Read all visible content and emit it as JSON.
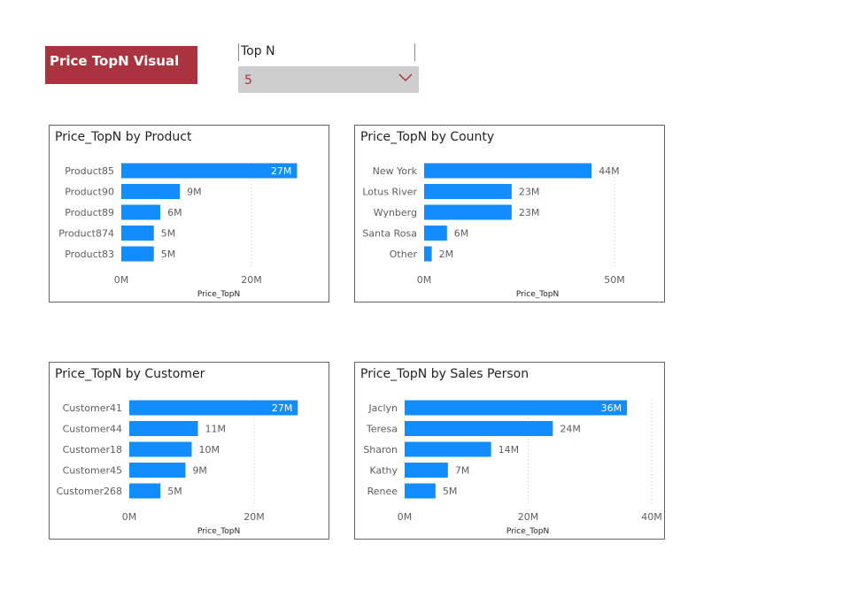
{
  "title": "Price TopN Visual",
  "slicer": {
    "label": "Top N",
    "value": "5"
  },
  "colors": {
    "bar": "#118dff",
    "title_bg": "#a9343f"
  },
  "chart_data": [
    {
      "type": "bar",
      "orientation": "horizontal",
      "title": "Price_TopN by Product",
      "xlabel": "Price_TopN",
      "categories": [
        "Product85",
        "Product90",
        "Product89",
        "Product874",
        "Product83"
      ],
      "values": [
        27,
        9,
        6,
        5,
        5
      ],
      "labels": [
        "27M",
        "9M",
        "6M",
        "5M",
        "5M"
      ],
      "ticks": [
        0,
        20
      ],
      "tick_labels": [
        "0M",
        "20M"
      ],
      "xlim": [
        0,
        30
      ]
    },
    {
      "type": "bar",
      "orientation": "horizontal",
      "title": "Price_TopN by County",
      "xlabel": "Price_TopN",
      "categories": [
        "New York",
        "Lotus River",
        "Wynberg",
        "Santa Rosa",
        "Other"
      ],
      "values": [
        44,
        23,
        23,
        6,
        2
      ],
      "labels": [
        "44M",
        "23M",
        "23M",
        "6M",
        "2M"
      ],
      "ticks": [
        0,
        50
      ],
      "tick_labels": [
        "0M",
        "50M"
      ],
      "xlim": [
        0,
        55
      ]
    },
    {
      "type": "bar",
      "orientation": "horizontal",
      "title": "Price_TopN by Customer",
      "xlabel": "Price_TopN",
      "categories": [
        "Customer41",
        "Customer44",
        "Customer18",
        "Customer45",
        "Customer268"
      ],
      "values": [
        27,
        11,
        10,
        9,
        5
      ],
      "labels": [
        "27M",
        "11M",
        "10M",
        "9M",
        "5M"
      ],
      "ticks": [
        0,
        20
      ],
      "tick_labels": [
        "0M",
        "20M"
      ],
      "xlim": [
        0,
        30
      ]
    },
    {
      "type": "bar",
      "orientation": "horizontal",
      "title": "Price_TopN by Sales Person",
      "xlabel": "Price_TopN",
      "categories": [
        "Jaclyn",
        "Teresa",
        "Sharon",
        "Kathy",
        "Renee"
      ],
      "values": [
        36,
        24,
        14,
        7,
        5
      ],
      "labels": [
        "36M",
        "24M",
        "14M",
        "7M",
        "5M"
      ],
      "ticks": [
        0,
        20,
        40
      ],
      "tick_labels": [
        "0M",
        "20M",
        "40M"
      ],
      "xlim": [
        0,
        40
      ]
    }
  ]
}
